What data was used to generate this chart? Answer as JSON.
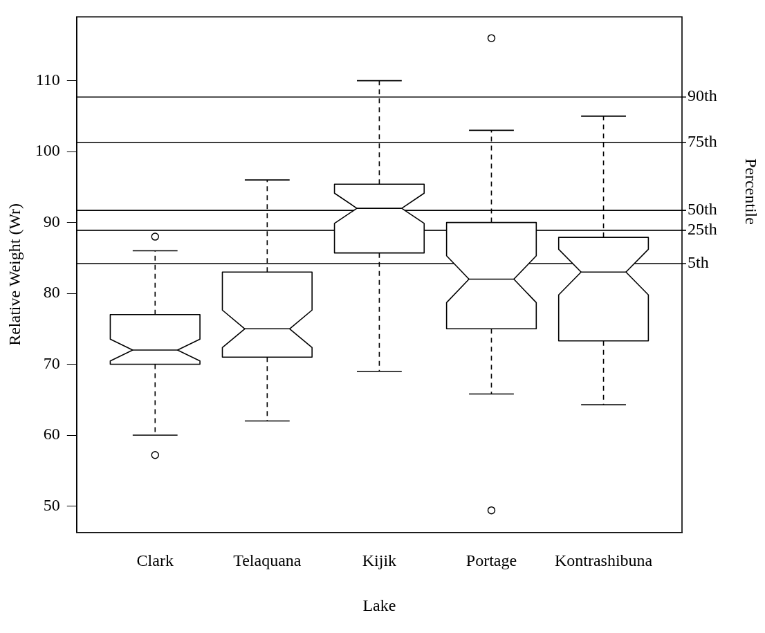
{
  "chart_data": {
    "type": "box",
    "xlabel": "Lake",
    "ylabel": "Relative Weight (Wr)",
    "y2label": "Percentile",
    "categories": [
      "Clark",
      "Telaquana",
      "Kijik",
      "Portage",
      "Kontrashibuna"
    ],
    "boxes": [
      {
        "low": 60,
        "q1": 70,
        "median": 72,
        "q3": 77,
        "high": 86,
        "outliers": [
          88,
          57.2
        ]
      },
      {
        "low": 62,
        "q1": 71,
        "median": 75,
        "q3": 83,
        "high": 96
      },
      {
        "low": 69,
        "q1": 85.7,
        "median": 92,
        "q3": 95.4,
        "high": 110
      },
      {
        "low": 65.8,
        "q1": 75,
        "median": 82,
        "q3": 90,
        "high": 103,
        "outliers": [
          116,
          49.4
        ]
      },
      {
        "low": 64.3,
        "q1": 73.3,
        "median": 83,
        "q3": 87.9,
        "high": 105
      }
    ],
    "ref_lines": [
      {
        "axis": "y",
        "value": 107.7,
        "label": "90th"
      },
      {
        "axis": "y",
        "value": 101.3,
        "label": "75th"
      },
      {
        "axis": "y",
        "value": 91.7,
        "label": "50th"
      },
      {
        "axis": "y",
        "value": 88.9,
        "label": "25th"
      },
      {
        "axis": "y",
        "value": 84.2,
        "label": "5th"
      }
    ],
    "ylim": [
      46.3,
      119
    ],
    "yticks": [
      50,
      60,
      70,
      80,
      90,
      100,
      110
    ],
    "grid": false,
    "legend": false,
    "marker": "circle"
  }
}
